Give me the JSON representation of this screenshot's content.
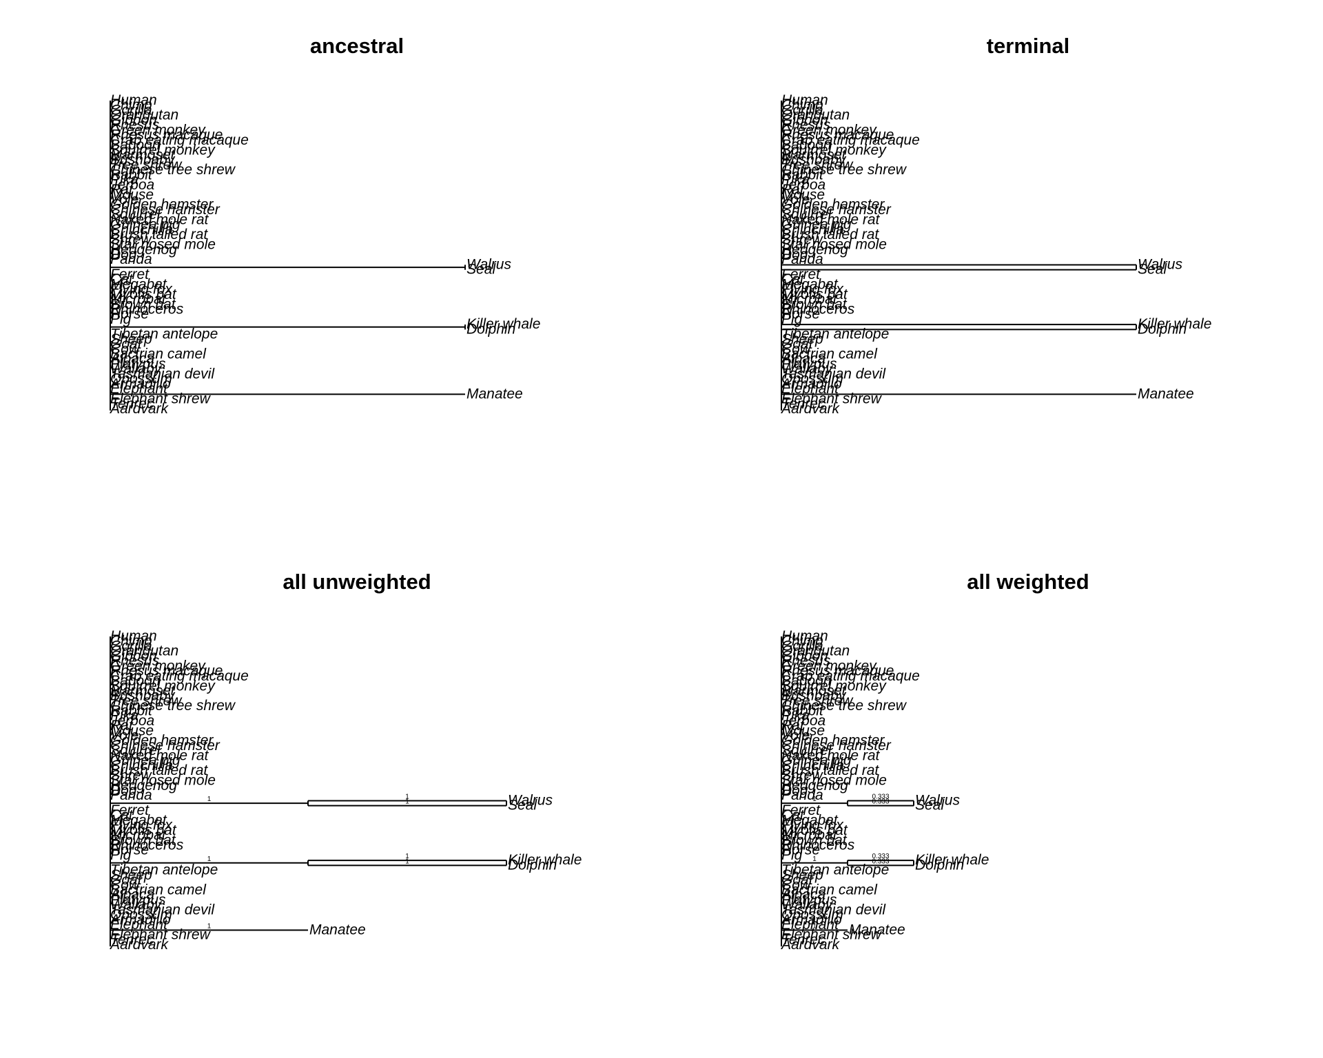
{
  "tips": [
    "Human",
    "Chimp",
    "Gorilla",
    "Orangutan",
    "Gibbon",
    "Rhesus",
    "Green monkey",
    "Rhesus macaque",
    "Crab eating macaque",
    "Baboon",
    "Squirrel monkey",
    "Marmoset",
    "Bushbaby",
    "Tree shrew",
    "Chinese tree shrew",
    "Rabbit",
    "Pika",
    "Jerboa",
    "Rat",
    "Mouse",
    "Vole",
    "Golden hamster",
    "Chinese hamster",
    "Squirrel",
    "Naked mole rat",
    "Guinea pig",
    "Chinchilla",
    "Brush tailed rat",
    "Shrew",
    "Star nosed mole",
    "Hedgehog",
    "Dog",
    "Panda",
    "Walrus",
    "Seal",
    "Ferret",
    "Cat",
    "Megabat",
    "Flying fox",
    "Myotis bat",
    "Microbat",
    "Brown bat",
    "Rhinoceros",
    "Horse",
    "Pig",
    "Killer whale",
    "Dolphin",
    "Tibetan antelope",
    "Sheep",
    "Goat",
    "Cow",
    "Bactrian camel",
    "Alpaca",
    "Platypus",
    "Wallaby",
    "Tasmanian devil",
    "Opossum",
    "Armadillo",
    "Elephant",
    "Manatee",
    "Elephant shrew",
    "Tenrec",
    "Aardvark"
  ],
  "panels": [
    {
      "id": "ancestral",
      "title": "ancestral"
    },
    {
      "id": "terminal",
      "title": "terminal"
    },
    {
      "id": "all_unweighted",
      "title": "all unweighted"
    },
    {
      "id": "all_weighted",
      "title": "all weighted"
    }
  ],
  "branch_labels": {
    "all_unweighted": {
      "stem": "1",
      "inner": "1"
    },
    "all_weighted": {
      "stem": "1",
      "inner": "0.333"
    }
  }
}
